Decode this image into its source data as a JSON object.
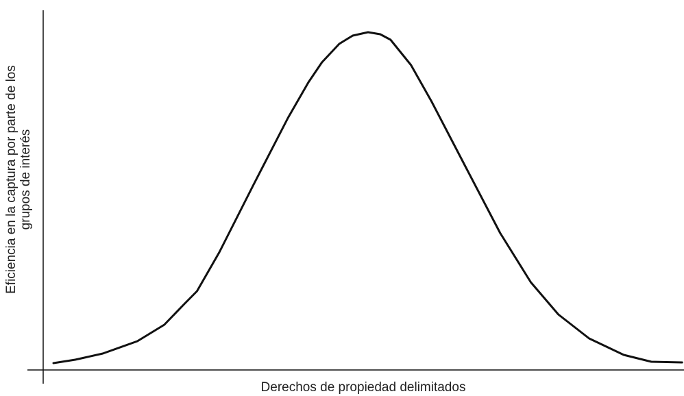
{
  "chart_data": {
    "type": "line",
    "xlabel": "Derechos de propiedad delimitados",
    "ylabel": [
      "Eficiencia en la captura por parte de los",
      "grupos de interés"
    ],
    "x": [
      1.6,
      5.0,
      9.3,
      14.7,
      18.9,
      22.1,
      24.0,
      27.5,
      32.8,
      38.2,
      41.4,
      43.5,
      46.2,
      48.3,
      50.7,
      52.6,
      54.2,
      57.4,
      60.6,
      66.0,
      71.3,
      76.1,
      80.4,
      85.2,
      90.6,
      94.9,
      99.7
    ],
    "y": [
      2,
      3,
      4.8,
      8.4,
      13.2,
      19.4,
      23,
      34.4,
      54,
      73.6,
      84,
      89.8,
      95.2,
      97.6,
      98.6,
      98,
      96.4,
      89,
      78.4,
      59,
      40,
      25.6,
      16.2,
      9.2,
      4.4,
      2.4,
      2.2
    ],
    "color": "#111111",
    "xlim": [
      0,
      100
    ],
    "ylim": [
      0,
      100
    ]
  }
}
